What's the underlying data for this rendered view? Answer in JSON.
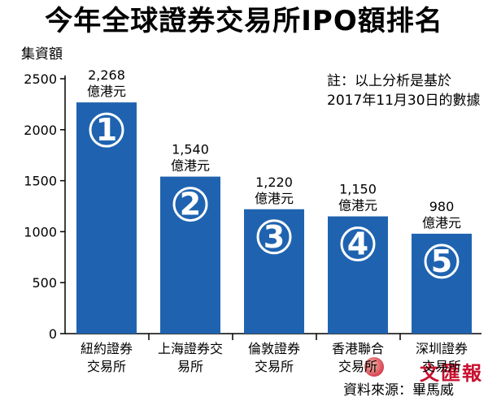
{
  "title": "今年全球證券交易所IPO額排名",
  "note": "註：以上分析是基於\n2017年11月30日的數據",
  "source": "資料來源：畢馬威",
  "logo_text": "文匯報",
  "colors": {
    "bar": "#1f63b0",
    "axis": "#000000",
    "circle": "#ffffff"
  },
  "chart_data": {
    "type": "bar",
    "ylabel": "集資額",
    "ylim": [
      0,
      2500
    ],
    "yticks": [
      0,
      500,
      1000,
      1500,
      2000,
      2500
    ],
    "categories": [
      "紐約證券交易所",
      "上海證券交易所",
      "倫敦證券交易所",
      "香港聯合交易所",
      "深圳證券交易所"
    ],
    "category_lines": [
      [
        "紐約證券",
        "交易所"
      ],
      [
        "上海證券交",
        "易所"
      ],
      [
        "倫敦證券",
        "交易所"
      ],
      [
        "香港聯合",
        "交易所"
      ],
      [
        "深圳證券",
        "交易所"
      ]
    ],
    "values": [
      2268,
      1540,
      1220,
      1150,
      980
    ],
    "value_labels": [
      "2,268",
      "1,540",
      "1,220",
      "1,150",
      "980"
    ],
    "unit": "億港元",
    "ranks": [
      "1",
      "2",
      "3",
      "4",
      "5"
    ]
  }
}
